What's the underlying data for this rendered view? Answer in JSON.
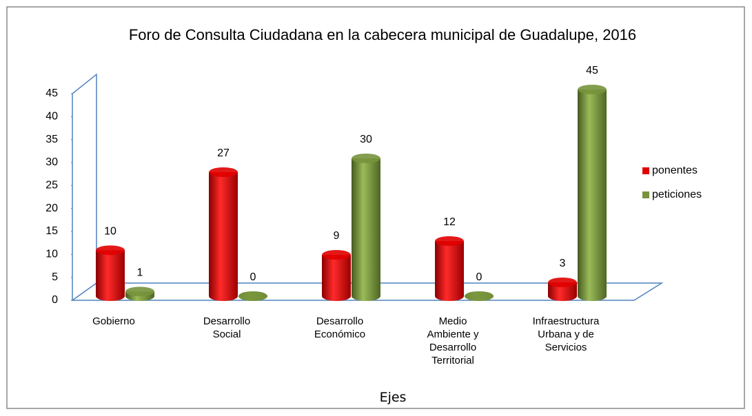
{
  "chart_data": {
    "type": "bar3d",
    "title": "Foro de Consulta Ciudadana en la cabecera municipal de Guadalupe, 2016",
    "x_label": "Ejes",
    "categories": [
      "Gobierno",
      "Desarrollo Social",
      "Desarrollo Económico",
      "Medio Ambiente y Desarrollo Territorial",
      "Infraestructura Urbana y de Servicios"
    ],
    "series": [
      {
        "name": "ponentes",
        "color": "#e00000",
        "values": [
          10,
          27,
          9,
          12,
          3
        ]
      },
      {
        "name": "peticiones",
        "color": "#77933c",
        "values": [
          1,
          0,
          30,
          0,
          45
        ]
      }
    ],
    "ylim": [
      0,
      45
    ],
    "yticks": [
      0,
      5,
      10,
      15,
      20,
      25,
      30,
      35,
      40,
      45
    ],
    "grid": false,
    "legend": "right"
  }
}
